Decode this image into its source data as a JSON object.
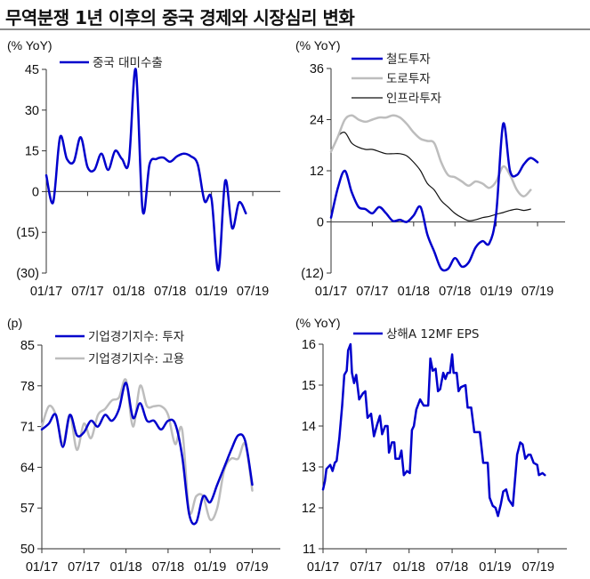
{
  "title": "무역분쟁 1년 이후의 중국 경제와 시장심리 변화",
  "chart_data": [
    {
      "type": "line",
      "unit_label": "(% YoY)",
      "ylim": [
        -30,
        45
      ],
      "yticks": [
        45,
        30,
        15,
        0,
        -15,
        -30
      ],
      "ytick_labels": [
        "45",
        "30",
        "15",
        "0",
        "(15)",
        "(30)"
      ],
      "xlim": [
        "2017-01",
        "2019-11"
      ],
      "xticks": [
        "2017-01",
        "2017-07",
        "2018-01",
        "2018-07",
        "2019-01",
        "2019-07"
      ],
      "xtick_labels": [
        "01/17",
        "07/17",
        "01/18",
        "07/18",
        "01/19",
        "07/19"
      ],
      "zero_line": true,
      "legend_placement": "top-left",
      "series": [
        {
          "name": "중국 대미수출",
          "color": "#0000CC",
          "width": 2.5,
          "x": [
            "2017-01",
            "2017-02",
            "2017-03",
            "2017-04",
            "2017-05",
            "2017-06",
            "2017-07",
            "2017-08",
            "2017-09",
            "2017-10",
            "2017-11",
            "2017-12",
            "2018-01",
            "2018-02",
            "2018-03",
            "2018-04",
            "2018-05",
            "2018-06",
            "2018-07",
            "2018-08",
            "2018-09",
            "2018-10",
            "2018-11",
            "2018-12",
            "2019-01",
            "2019-02",
            "2019-03",
            "2019-04",
            "2019-05",
            "2019-06"
          ],
          "values": [
            6,
            -4,
            20,
            12,
            11,
            20,
            9,
            8,
            14,
            8,
            15,
            12,
            11,
            45,
            -7,
            10,
            12,
            12.5,
            11,
            13,
            14,
            13,
            10,
            -3.5,
            -2.5,
            -29,
            4,
            -13.5,
            -4,
            -8
          ]
        }
      ]
    },
    {
      "type": "line",
      "unit_label": "(% YoY)",
      "ylim": [
        -12,
        36
      ],
      "yticks": [
        36,
        24,
        12,
        0,
        -12
      ],
      "ytick_labels": [
        "36",
        "24",
        "12",
        "0",
        "(12)"
      ],
      "xlim": [
        "2017-01",
        "2019-11"
      ],
      "xticks": [
        "2017-01",
        "2017-07",
        "2018-01",
        "2018-07",
        "2019-01",
        "2019-07"
      ],
      "xtick_labels": [
        "01/17",
        "07/17",
        "01/18",
        "07/18",
        "01/19",
        "07/19"
      ],
      "zero_line": true,
      "legend_placement": "top-right",
      "series": [
        {
          "name": "철도투자",
          "color": "#0000CC",
          "width": 2.5,
          "x": [
            "2017-01",
            "2017-02",
            "2017-03",
            "2017-04",
            "2017-05",
            "2017-06",
            "2017-07",
            "2017-08",
            "2017-09",
            "2017-10",
            "2017-11",
            "2017-12",
            "2018-01",
            "2018-02",
            "2018-03",
            "2018-04",
            "2018-05",
            "2018-06",
            "2018-07",
            "2018-08",
            "2018-09",
            "2018-10",
            "2018-11",
            "2018-12",
            "2019-01",
            "2019-02",
            "2019-03",
            "2019-04",
            "2019-05",
            "2019-06",
            "2019-07"
          ],
          "values": [
            1,
            8,
            12,
            7,
            3.5,
            3,
            2,
            3.5,
            2,
            0.2,
            0.5,
            0,
            1.5,
            3.5,
            -3,
            -7,
            -11,
            -11,
            -8.5,
            -10.5,
            -9.5,
            -6,
            -4.5,
            -5,
            2,
            23,
            12,
            11,
            13.5,
            15,
            14
          ]
        },
        {
          "name": "도로투자",
          "color": "#BDBDBD",
          "width": 2.5,
          "x": [
            "2017-01",
            "2017-02",
            "2017-03",
            "2017-04",
            "2017-05",
            "2017-06",
            "2017-07",
            "2017-08",
            "2017-09",
            "2017-10",
            "2017-11",
            "2017-12",
            "2018-01",
            "2018-02",
            "2018-03",
            "2018-04",
            "2018-05",
            "2018-06",
            "2018-07",
            "2018-08",
            "2018-09",
            "2018-10",
            "2018-11",
            "2018-12",
            "2019-01",
            "2019-02",
            "2019-03",
            "2019-04",
            "2019-05",
            "2019-06"
          ],
          "values": [
            16.5,
            20,
            24,
            25,
            24,
            23.5,
            24,
            24.5,
            24.5,
            25,
            24.5,
            23,
            21,
            19.5,
            19,
            18.5,
            14,
            11,
            10.5,
            9.5,
            8.5,
            9.5,
            9,
            8,
            9.5,
            13,
            11,
            7.5,
            6,
            7.5
          ]
        },
        {
          "name": "인프라투자",
          "color": "#111111",
          "width": 1.2,
          "x": [
            "2017-01",
            "2017-02",
            "2017-03",
            "2017-04",
            "2017-05",
            "2017-06",
            "2017-07",
            "2017-08",
            "2017-09",
            "2017-10",
            "2017-11",
            "2017-12",
            "2018-01",
            "2018-02",
            "2018-03",
            "2018-04",
            "2018-05",
            "2018-06",
            "2018-07",
            "2018-08",
            "2018-09",
            "2018-10",
            "2018-11",
            "2018-12",
            "2019-01",
            "2019-02",
            "2019-03",
            "2019-04",
            "2019-05",
            "2019-06"
          ],
          "values": [
            16.5,
            20,
            21,
            18.5,
            17.5,
            17,
            17,
            16.5,
            16,
            16,
            16,
            15.5,
            14,
            12,
            9,
            7.5,
            5,
            3.5,
            2,
            1,
            0.3,
            0.5,
            1,
            1.3,
            1.8,
            2.2,
            2.7,
            3,
            2.7,
            3
          ]
        }
      ]
    },
    {
      "type": "line",
      "unit_label": "(p)",
      "ylim": [
        50,
        85
      ],
      "yticks": [
        85,
        78,
        71,
        64,
        57,
        50
      ],
      "ytick_labels": [
        "85",
        "78",
        "71",
        "64",
        "57",
        "50"
      ],
      "xlim": [
        "2017-01",
        "2019-11"
      ],
      "xticks": [
        "2017-01",
        "2017-07",
        "2018-01",
        "2018-07",
        "2019-01",
        "2019-07"
      ],
      "xtick_labels": [
        "01/17",
        "07/17",
        "01/18",
        "07/18",
        "01/19",
        "07/19"
      ],
      "zero_line": false,
      "legend_placement": "top-left",
      "series": [
        {
          "name": "기업경기지수: 투자",
          "color": "#0000CC",
          "width": 2.5,
          "x": [
            "2017-01",
            "2017-02",
            "2017-03",
            "2017-04",
            "2017-05",
            "2017-06",
            "2017-07",
            "2017-08",
            "2017-09",
            "2017-10",
            "2017-11",
            "2017-12",
            "2018-01",
            "2018-02",
            "2018-03",
            "2018-04",
            "2018-05",
            "2018-06",
            "2018-07",
            "2018-08",
            "2018-09",
            "2018-10",
            "2018-11",
            "2018-12",
            "2019-01",
            "2019-02",
            "2019-03",
            "2019-04",
            "2019-05",
            "2019-06",
            "2019-07"
          ],
          "values": [
            70.5,
            71.5,
            73,
            67.5,
            73,
            69.5,
            70,
            72,
            71,
            73,
            72,
            74,
            78.5,
            72.5,
            75,
            72,
            72,
            70.5,
            72,
            71.5,
            66,
            56,
            54.5,
            59,
            58,
            61,
            64,
            67,
            69.5,
            68.5,
            61
          ]
        },
        {
          "name": "기업경기지수: 고용",
          "color": "#BDBDBD",
          "width": 2.5,
          "x": [
            "2017-01",
            "2017-02",
            "2017-03",
            "2017-04",
            "2017-05",
            "2017-06",
            "2017-07",
            "2017-08",
            "2017-09",
            "2017-10",
            "2017-11",
            "2017-12",
            "2018-01",
            "2018-02",
            "2018-03",
            "2018-04",
            "2018-05",
            "2018-06",
            "2018-07",
            "2018-08",
            "2018-09",
            "2018-10",
            "2018-11",
            "2018-12",
            "2019-01",
            "2019-02",
            "2019-03",
            "2019-04",
            "2019-05",
            "2019-06",
            "2019-07"
          ],
          "values": [
            71,
            74.5,
            73,
            68,
            73,
            67,
            71.5,
            69,
            73,
            74,
            75.5,
            76,
            79,
            71,
            78,
            74.5,
            74.5,
            74.5,
            73,
            68,
            70.5,
            56.5,
            59,
            59,
            55,
            57,
            63.5,
            65.5,
            65.5,
            68,
            60
          ]
        }
      ]
    },
    {
      "type": "line",
      "unit_label": "(% YoY)",
      "ylim": [
        11,
        16
      ],
      "yticks": [
        16,
        15,
        14,
        13,
        12,
        11
      ],
      "ytick_labels": [
        "16",
        "15",
        "14",
        "13",
        "12",
        "11"
      ],
      "xlim": [
        "2017-01",
        "2019-11"
      ],
      "xticks": [
        "2017-01",
        "2017-07",
        "2018-01",
        "2018-07",
        "2019-01",
        "2019-07"
      ],
      "xtick_labels": [
        "01/17",
        "07/17",
        "01/18",
        "07/18",
        "01/19",
        "07/19"
      ],
      "zero_line": false,
      "legend_placement": "top-left",
      "series": [
        {
          "name": "상해A 12MF EPS",
          "color": "#0000CC",
          "width": 2.5,
          "smooth": false,
          "x": [
            "2017-01-01",
            "2017-01-09",
            "2017-01-15",
            "2017-02-01",
            "2017-02-11",
            "2017-02-20",
            "2017-02-28",
            "2017-03-09",
            "2017-03-21",
            "2017-03-30",
            "2017-04-10",
            "2017-04-16",
            "2017-04-26",
            "2017-05-02",
            "2017-05-11",
            "2017-05-20",
            "2017-06-02",
            "2017-06-18",
            "2017-06-28",
            "2017-07-07",
            "2017-07-22",
            "2017-08-04",
            "2017-08-18",
            "2017-08-29",
            "2017-09-08",
            "2017-09-21",
            "2017-10-01",
            "2017-10-07",
            "2017-10-19",
            "2017-10-29",
            "2017-11-04",
            "2017-11-20",
            "2017-11-29",
            "2017-12-09",
            "2017-12-22",
            "2018-01-04",
            "2018-01-13",
            "2018-01-21",
            "2018-02-01",
            "2018-02-17",
            "2018-03-02",
            "2018-03-21",
            "2018-03-30",
            "2018-04-10",
            "2018-04-22",
            "2018-05-02",
            "2018-05-11",
            "2018-05-24",
            "2018-06-03",
            "2018-06-12",
            "2018-06-22",
            "2018-07-01",
            "2018-07-07",
            "2018-07-20",
            "2018-07-28",
            "2018-08-08",
            "2018-08-27",
            "2018-09-06",
            "2018-09-21",
            "2018-10-04",
            "2018-10-27",
            "2018-11-11",
            "2018-11-30",
            "2018-12-08",
            "2018-12-21",
            "2019-01-03",
            "2019-01-13",
            "2019-01-25",
            "2019-02-05",
            "2019-02-17",
            "2019-02-28",
            "2019-03-15",
            "2019-04-03",
            "2019-04-16",
            "2019-04-26",
            "2019-05-07",
            "2019-05-20",
            "2019-05-29",
            "2019-06-12",
            "2019-06-27",
            "2019-07-04",
            "2019-07-19",
            "2019-07-29"
          ],
          "values": [
            12.45,
            12.65,
            12.95,
            13.05,
            12.9,
            13.1,
            13.15,
            13.7,
            14.5,
            15.25,
            15.35,
            15.85,
            16.0,
            15.3,
            15.05,
            15.25,
            14.65,
            14.8,
            14.85,
            14.2,
            14.3,
            13.75,
            14.05,
            14.25,
            13.8,
            14.0,
            14.0,
            13.35,
            13.6,
            13.6,
            13.2,
            13.2,
            13.4,
            12.8,
            12.9,
            12.85,
            13.9,
            14.0,
            14.4,
            14.65,
            14.5,
            14.5,
            15.65,
            15.35,
            15.4,
            14.85,
            14.9,
            15.3,
            15.15,
            15.3,
            15.3,
            15.75,
            15.3,
            15.3,
            14.85,
            14.95,
            15.0,
            14.45,
            14.45,
            13.85,
            13.85,
            13.1,
            13.1,
            12.25,
            12.05,
            12.0,
            11.8,
            12.1,
            12.4,
            12.45,
            12.2,
            12.05,
            13.3,
            13.6,
            13.55,
            13.2,
            13.3,
            13.3,
            13.1,
            13.05,
            12.8,
            12.85,
            12.8
          ]
        }
      ]
    }
  ]
}
